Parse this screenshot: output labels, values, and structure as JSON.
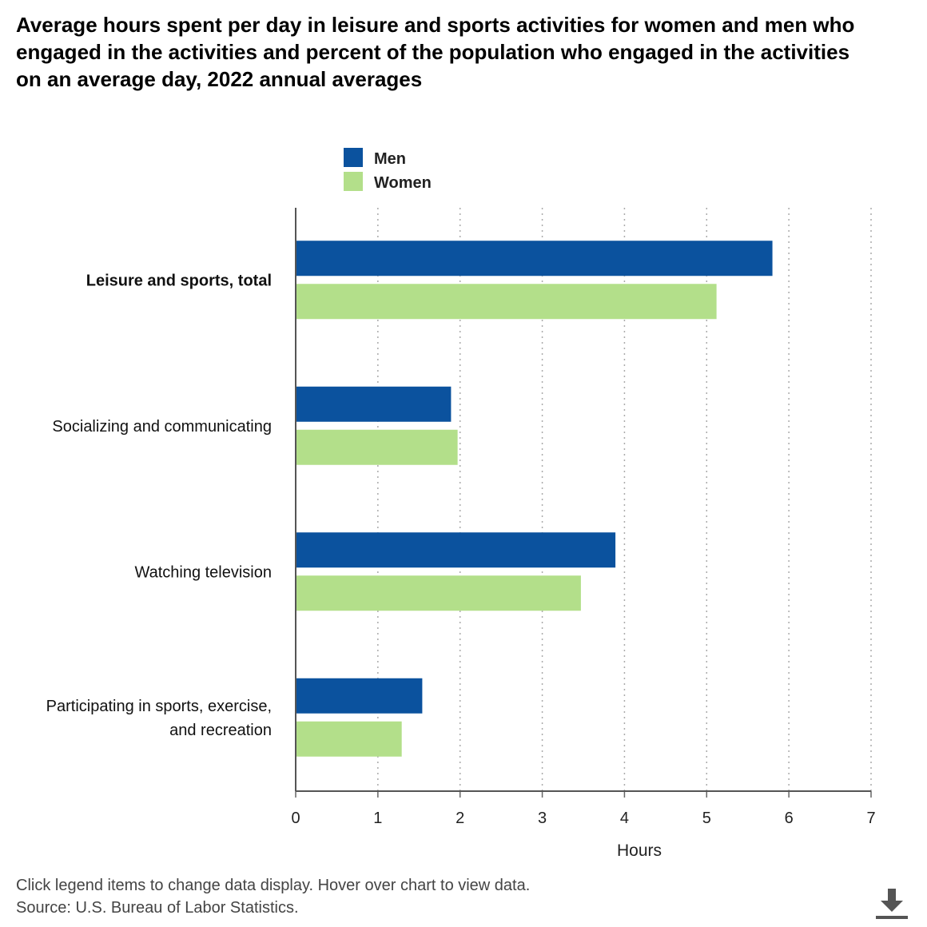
{
  "title": "Average hours spent per day in leisure and sports activities for women and men who engaged in the activities and percent of the population who engaged in the activities on an average day, 2022 annual averages",
  "footer": {
    "note": "Click legend items to change data display. Hover over chart to view data.",
    "source": "Source: U.S. Bureau of Labor Statistics."
  },
  "download_icon": "download-icon",
  "chart_data": {
    "type": "bar",
    "orientation": "horizontal",
    "categories": [
      "Leisure and sports, total",
      "Socializing and communicating",
      "Watching television",
      "Participating in sports, exercise, and recreation"
    ],
    "category_label_lines": [
      [
        "Leisure and sports, total"
      ],
      [
        "Socializing and communicating"
      ],
      [
        "Watching television"
      ],
      [
        "Participating in sports, exercise,",
        "and recreation"
      ]
    ],
    "series": [
      {
        "name": "Men",
        "color": "#0b529e",
        "values": [
          5.8,
          1.89,
          3.89,
          1.54
        ]
      },
      {
        "name": "Women",
        "color": "#b3df8a",
        "values": [
          5.12,
          1.97,
          3.47,
          1.29
        ]
      }
    ],
    "xlabel": "Hours",
    "ylabel": "",
    "xlim": [
      0,
      7
    ],
    "ticks": [
      "0",
      "1",
      "2",
      "3",
      "4",
      "5",
      "6",
      "7"
    ],
    "grid": true,
    "legend_position": "top"
  }
}
